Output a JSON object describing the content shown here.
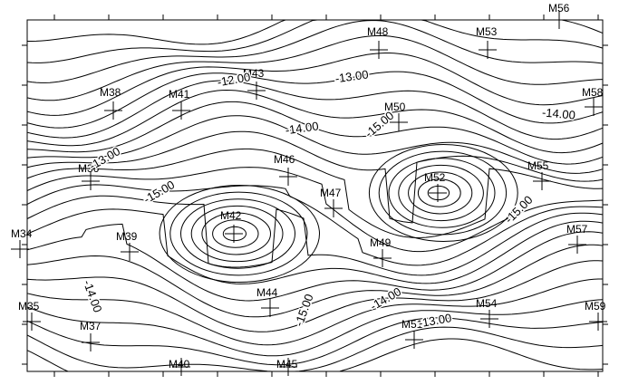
{
  "wells": [
    "M56",
    "M48",
    "M53",
    "M43",
    "M38",
    "M41",
    "M58",
    "M50",
    "M36",
    "M46",
    "M55",
    "M52",
    "M47",
    "M42",
    "M34",
    "M39",
    "M57",
    "M49",
    "M44",
    "M35",
    "M59",
    "M54",
    "M37",
    "M51",
    "M40",
    "M45"
  ],
  "contour_labels": [
    "-12.00",
    "-13.00",
    "-14.00",
    "-14.00",
    "-15.00",
    "-13.00",
    "-15.00",
    "-15.00",
    "-14.00",
    "-15.00",
    "-14.00",
    "-13.00"
  ]
}
